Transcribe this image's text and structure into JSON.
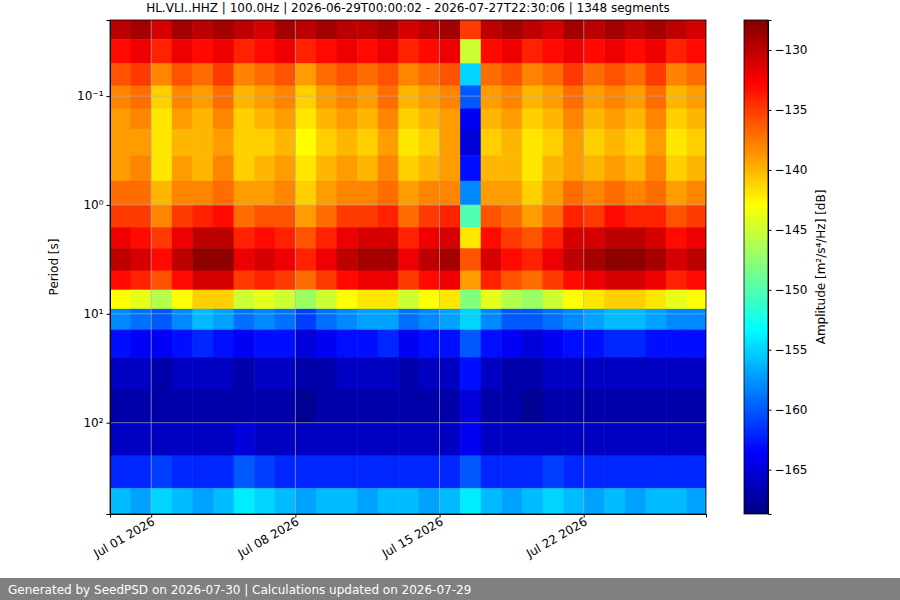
{
  "chart_data": {
    "type": "heatmap",
    "title": "HL.VLI..HHZ | 100.0Hz | 2026-06-29T00:00:02 - 2026-07-27T22:30:06 | 1348 segments",
    "y_label": "Period [s]",
    "colorbar_label": "Amplitude [m²/s⁴/Hz] [dB]",
    "footer": "Generated by SeedPSD on 2026-07-30 | Calculations updated on 2026-07-29",
    "log": "y",
    "grid": true,
    "xlim": [
      "2026-06-29T00:00:02",
      "2026-07-27T22:30:06"
    ],
    "xticks": [
      {
        "value": "2026-07-01",
        "label": "Jul 01 2026"
      },
      {
        "value": "2026-07-08",
        "label": "Jul 08 2026"
      },
      {
        "value": "2026-07-15",
        "label": "Jul 15 2026"
      },
      {
        "value": "2026-07-22",
        "label": "Jul 22 2026"
      }
    ],
    "ylim": [
      0.02,
      690
    ],
    "yticks": [
      {
        "value": 0.1,
        "label": "10⁻¹"
      },
      {
        "value": 1,
        "label": "10⁰"
      },
      {
        "value": 10,
        "label": "10¹"
      },
      {
        "value": 100,
        "label": "10²"
      }
    ],
    "zlim": [
      -168.7,
      -127.5
    ],
    "zticks": [
      {
        "value": -130,
        "label": "−130"
      },
      {
        "value": -135,
        "label": "−135"
      },
      {
        "value": -140,
        "label": "−140"
      },
      {
        "value": -145,
        "label": "−145"
      },
      {
        "value": -150,
        "label": "−150"
      },
      {
        "value": -155,
        "label": "−155"
      },
      {
        "value": -160,
        "label": "−160"
      },
      {
        "value": -165,
        "label": "−165"
      }
    ],
    "x_bins": [
      "2026-06-29",
      "2026-06-30",
      "2026-07-01",
      "2026-07-02",
      "2026-07-03",
      "2026-07-04",
      "2026-07-05",
      "2026-07-06",
      "2026-07-07",
      "2026-07-08",
      "2026-07-09",
      "2026-07-10",
      "2026-07-11",
      "2026-07-12",
      "2026-07-13",
      "2026-07-14",
      "2026-07-15",
      "2026-07-16",
      "2026-07-17",
      "2026-07-18",
      "2026-07-19",
      "2026-07-20",
      "2026-07-21",
      "2026-07-22",
      "2026-07-23",
      "2026-07-24",
      "2026-07-25",
      "2026-07-26",
      "2026-07-27",
      "2026-07-27T22:30:06"
    ],
    "y_bins": [
      0.02,
      0.03,
      0.05,
      0.08,
      0.13,
      0.2,
      0.35,
      0.6,
      1,
      1.6,
      2.5,
      4,
      6,
      9,
      14,
      25,
      50,
      100,
      200,
      400,
      690
    ],
    "z": [
      [
        -130,
        -129,
        -131,
        -129,
        -130,
        -129,
        -130,
        -131,
        -129,
        -130,
        -129,
        -130,
        -130,
        -129,
        -131,
        -130,
        -129,
        -135,
        -130,
        -129,
        -130,
        -131,
        -129,
        -130,
        -129,
        -130,
        -129,
        -130,
        -131
      ],
      [
        -133,
        -132,
        -134,
        -132,
        -133,
        -132,
        -134,
        -133,
        -132,
        -134,
        -133,
        -132,
        -133,
        -132,
        -134,
        -133,
        -132,
        -145,
        -133,
        -132,
        -134,
        -133,
        -132,
        -133,
        -132,
        -133,
        -132,
        -134,
        -133
      ],
      [
        -136,
        -135,
        -138,
        -136,
        -137,
        -135,
        -138,
        -137,
        -136,
        -139,
        -137,
        -136,
        -137,
        -136,
        -138,
        -137,
        -136,
        -155,
        -137,
        -136,
        -138,
        -137,
        -135,
        -137,
        -136,
        -137,
        -135,
        -138,
        -137
      ],
      [
        -138,
        -137,
        -141,
        -138,
        -139,
        -137,
        -140,
        -139,
        -138,
        -141,
        -139,
        -138,
        -139,
        -137,
        -140,
        -139,
        -138,
        -160,
        -139,
        -138,
        -140,
        -139,
        -137,
        -139,
        -138,
        -139,
        -137,
        -140,
        -139
      ],
      [
        -139,
        -138,
        -142,
        -139,
        -140,
        -138,
        -141,
        -140,
        -139,
        -142,
        -140,
        -139,
        -140,
        -138,
        -141,
        -140,
        -139,
        -164,
        -140,
        -139,
        -141,
        -140,
        -138,
        -140,
        -139,
        -140,
        -138,
        -141,
        -140
      ],
      [
        -139,
        -139,
        -142,
        -140,
        -140,
        -139,
        -141,
        -141,
        -140,
        -143,
        -141,
        -140,
        -141,
        -139,
        -142,
        -141,
        -139,
        -165,
        -141,
        -140,
        -142,
        -141,
        -139,
        -141,
        -140,
        -141,
        -139,
        -142,
        -141
      ],
      [
        -139,
        -138,
        -142,
        -139,
        -140,
        -138,
        -141,
        -140,
        -139,
        -142,
        -140,
        -139,
        -140,
        -138,
        -141,
        -140,
        -139,
        -163,
        -140,
        -140,
        -142,
        -140,
        -139,
        -140,
        -139,
        -140,
        -138,
        -141,
        -140
      ],
      [
        -137,
        -137,
        -140,
        -138,
        -138,
        -137,
        -139,
        -139,
        -138,
        -141,
        -139,
        -138,
        -138,
        -137,
        -139,
        -138,
        -138,
        -158,
        -139,
        -139,
        -141,
        -139,
        -137,
        -138,
        -137,
        -138,
        -137,
        -139,
        -138
      ],
      [
        -135,
        -135,
        -138,
        -135,
        -134,
        -133,
        -137,
        -136,
        -136,
        -139,
        -137,
        -135,
        -135,
        -134,
        -137,
        -135,
        -134,
        -150,
        -136,
        -137,
        -139,
        -137,
        -134,
        -135,
        -133,
        -134,
        -134,
        -136,
        -135
      ],
      [
        -132,
        -133,
        -135,
        -132,
        -130,
        -130,
        -134,
        -133,
        -134,
        -136,
        -134,
        -132,
        -131,
        -131,
        -134,
        -132,
        -131,
        -142,
        -133,
        -135,
        -136,
        -134,
        -131,
        -131,
        -130,
        -130,
        -131,
        -133,
        -132
      ],
      [
        -130,
        -131,
        -133,
        -130,
        -128,
        -128,
        -132,
        -131,
        -132,
        -134,
        -132,
        -130,
        -129,
        -129,
        -132,
        -130,
        -129,
        -136,
        -131,
        -133,
        -134,
        -132,
        -130,
        -129,
        -128,
        -128,
        -129,
        -131,
        -130
      ],
      [
        -133,
        -134,
        -136,
        -133,
        -131,
        -131,
        -135,
        -134,
        -135,
        -137,
        -135,
        -133,
        -132,
        -132,
        -135,
        -133,
        -132,
        -139,
        -134,
        -136,
        -137,
        -135,
        -133,
        -132,
        -131,
        -131,
        -132,
        -134,
        -133
      ],
      [
        -143,
        -144,
        -146,
        -143,
        -141,
        -141,
        -145,
        -144,
        -145,
        -147,
        -145,
        -143,
        -142,
        -142,
        -145,
        -143,
        -142,
        -148,
        -144,
        -146,
        -147,
        -145,
        -143,
        -142,
        -141,
        -141,
        -142,
        -144,
        -143
      ],
      [
        -158,
        -159,
        -160,
        -158,
        -156,
        -157,
        -159,
        -158,
        -159,
        -161,
        -159,
        -158,
        -157,
        -157,
        -159,
        -158,
        -157,
        -155,
        -158,
        -160,
        -160,
        -159,
        -158,
        -157,
        -156,
        -156,
        -157,
        -158,
        -158
      ],
      [
        -163,
        -164,
        -164,
        -163,
        -162,
        -163,
        -164,
        -163,
        -163,
        -165,
        -164,
        -163,
        -163,
        -162,
        -164,
        -163,
        -163,
        -160,
        -163,
        -164,
        -165,
        -164,
        -163,
        -163,
        -162,
        -162,
        -163,
        -163,
        -163
      ],
      [
        -166,
        -166,
        -167,
        -166,
        -166,
        -166,
        -167,
        -166,
        -166,
        -167,
        -167,
        -166,
        -166,
        -166,
        -167,
        -166,
        -166,
        -163,
        -166,
        -167,
        -167,
        -166,
        -166,
        -166,
        -166,
        -166,
        -166,
        -166,
        -166
      ],
      [
        -167,
        -167,
        -167,
        -167,
        -167,
        -167,
        -167,
        -167,
        -167,
        -168,
        -167,
        -167,
        -167,
        -167,
        -167,
        -167,
        -167,
        -165,
        -167,
        -167,
        -168,
        -167,
        -167,
        -167,
        -167,
        -167,
        -167,
        -167,
        -167
      ],
      [
        -166,
        -166,
        -166,
        -166,
        -166,
        -166,
        -165,
        -166,
        -166,
        -166,
        -166,
        -166,
        -166,
        -166,
        -166,
        -166,
        -166,
        -164,
        -166,
        -166,
        -166,
        -166,
        -166,
        -166,
        -166,
        -166,
        -166,
        -166,
        -166
      ],
      [
        -162,
        -162,
        -161,
        -162,
        -162,
        -162,
        -160,
        -161,
        -162,
        -162,
        -162,
        -162,
        -162,
        -162,
        -162,
        -162,
        -162,
        -160,
        -162,
        -162,
        -162,
        -161,
        -162,
        -162,
        -162,
        -162,
        -162,
        -162,
        -162
      ],
      [
        -156,
        -157,
        -155,
        -156,
        -157,
        -156,
        -154,
        -155,
        -156,
        -157,
        -156,
        -156,
        -157,
        -156,
        -156,
        -157,
        -156,
        -154,
        -156,
        -157,
        -156,
        -155,
        -156,
        -157,
        -156,
        -157,
        -156,
        -156,
        -157
      ]
    ]
  }
}
